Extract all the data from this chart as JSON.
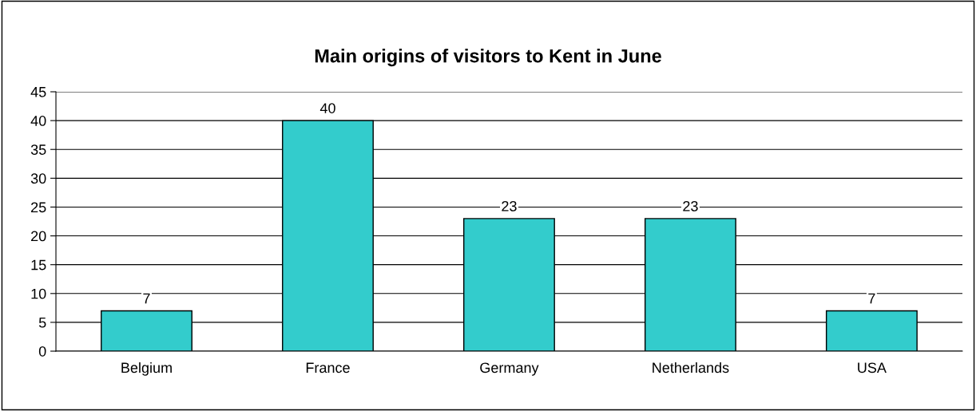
{
  "chart_data": {
    "type": "bar",
    "title": "Main origins of visitors to Kent in June",
    "categories": [
      "Belgium",
      "France",
      "Germany",
      "Netherlands",
      "USA"
    ],
    "values": [
      7,
      40,
      23,
      23,
      7
    ],
    "color": "#33cccc",
    "ylim": [
      0,
      45
    ],
    "yticks": [
      0,
      5,
      10,
      15,
      20,
      25,
      30,
      35,
      40,
      45
    ],
    "grid": "y",
    "data_labels": true
  }
}
